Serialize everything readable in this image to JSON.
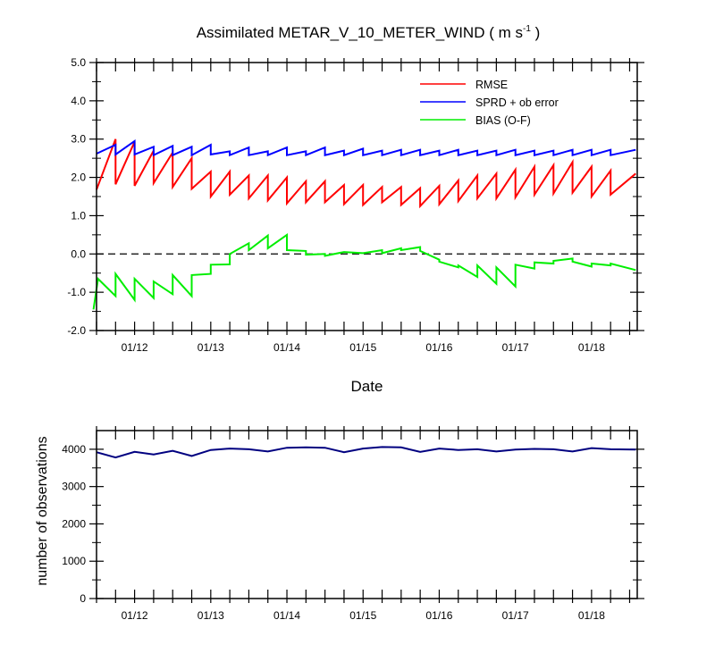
{
  "chart_data": [
    {
      "type": "line",
      "title_main": "Assimilated METAR_V_10_METER_WIND ( m s",
      "title_sup": "-1",
      "title_end": " )",
      "xlabel": "Date",
      "ylabel": "",
      "ylim": [
        -2.0,
        5.0
      ],
      "y_ticks": [
        "5.0",
        "4.0",
        "3.0",
        "2.0",
        "1.0",
        "0.0",
        "-1.0",
        "-2.0"
      ],
      "y_tick_values": [
        5,
        4,
        3,
        2,
        1,
        0,
        -1,
        -2
      ],
      "xlim": [
        11.5,
        18.6
      ],
      "x_ticks": [
        "01/12",
        "01/13",
        "01/14",
        "01/15",
        "01/16",
        "01/17",
        "01/18"
      ],
      "x_tick_values": [
        12,
        13,
        14,
        15,
        16,
        17,
        18
      ],
      "zero_line": 0.0,
      "legend": [
        "RMSE",
        "SPRD + ob error",
        "BIAS (O-F)"
      ],
      "colors": {
        "rmse": "#ff0000",
        "sprd": "#0000ff",
        "bias": "#00ee00"
      },
      "series": [
        {
          "name": "RMSE",
          "x": [
            11.5,
            11.75,
            11.75,
            12.0,
            12.0,
            12.25,
            12.25,
            12.5,
            12.5,
            12.75,
            12.75,
            13.0,
            13.0,
            13.25,
            13.25,
            13.5,
            13.5,
            13.75,
            13.75,
            14.0,
            14.0,
            14.25,
            14.25,
            14.5,
            14.5,
            14.75,
            14.75,
            15.0,
            15.0,
            15.25,
            15.25,
            15.5,
            15.5,
            15.75,
            15.75,
            16.0,
            16.0,
            16.25,
            16.25,
            16.5,
            16.5,
            16.75,
            16.75,
            17.0,
            17.0,
            17.25,
            17.25,
            17.5,
            17.5,
            17.75,
            17.75,
            18.0,
            18.0,
            18.25,
            18.25,
            18.58
          ],
          "values": [
            1.68,
            3.0,
            1.82,
            2.93,
            1.78,
            2.7,
            1.85,
            2.65,
            1.75,
            2.5,
            1.7,
            2.15,
            1.5,
            2.15,
            1.55,
            2.05,
            1.45,
            2.05,
            1.4,
            2.0,
            1.32,
            1.9,
            1.35,
            1.9,
            1.35,
            1.8,
            1.3,
            1.8,
            1.28,
            1.75,
            1.35,
            1.75,
            1.28,
            1.72,
            1.25,
            1.78,
            1.3,
            1.92,
            1.38,
            2.05,
            1.45,
            2.1,
            1.45,
            2.2,
            1.48,
            2.28,
            1.55,
            2.32,
            1.58,
            2.4,
            1.6,
            2.28,
            1.5,
            2.18,
            1.55,
            2.1
          ]
        },
        {
          "name": "SPRD + ob error",
          "x": [
            11.5,
            11.75,
            11.75,
            12.0,
            12.0,
            12.25,
            12.25,
            12.5,
            12.5,
            12.75,
            12.75,
            13.0,
            13.0,
            13.25,
            13.25,
            13.5,
            13.5,
            13.75,
            13.75,
            14.0,
            14.0,
            14.25,
            14.25,
            14.5,
            14.5,
            14.75,
            14.75,
            15.0,
            15.0,
            15.25,
            15.25,
            15.5,
            15.5,
            15.75,
            15.75,
            16.0,
            16.0,
            16.25,
            16.25,
            16.5,
            16.5,
            16.75,
            16.75,
            17.0,
            17.0,
            17.25,
            17.25,
            17.5,
            17.5,
            17.75,
            17.75,
            18.0,
            18.0,
            18.25,
            18.25,
            18.58
          ],
          "values": [
            2.62,
            2.85,
            2.6,
            2.95,
            2.6,
            2.8,
            2.58,
            2.82,
            2.58,
            2.8,
            2.58,
            2.85,
            2.6,
            2.68,
            2.58,
            2.78,
            2.58,
            2.68,
            2.58,
            2.78,
            2.58,
            2.68,
            2.58,
            2.78,
            2.58,
            2.7,
            2.58,
            2.75,
            2.58,
            2.7,
            2.58,
            2.72,
            2.58,
            2.72,
            2.58,
            2.7,
            2.58,
            2.72,
            2.58,
            2.7,
            2.58,
            2.7,
            2.58,
            2.72,
            2.58,
            2.7,
            2.58,
            2.7,
            2.58,
            2.72,
            2.58,
            2.72,
            2.58,
            2.72,
            2.58,
            2.72
          ]
        },
        {
          "name": "BIAS (O-F)",
          "x": [
            11.46,
            11.52,
            11.75,
            11.75,
            12.0,
            12.0,
            12.25,
            12.25,
            12.5,
            12.5,
            12.75,
            12.75,
            13.0,
            13.0,
            13.25,
            13.25,
            13.5,
            13.5,
            13.75,
            13.75,
            14.0,
            14.0,
            14.25,
            14.25,
            14.5,
            14.5,
            14.75,
            14.75,
            15.0,
            15.0,
            15.25,
            15.25,
            15.5,
            15.5,
            15.75,
            15.75,
            16.0,
            16.0,
            16.25,
            16.25,
            16.5,
            16.5,
            16.75,
            16.75,
            17.0,
            17.0,
            17.25,
            17.25,
            17.5,
            17.5,
            17.75,
            17.75,
            18.0,
            18.0,
            18.25,
            18.25,
            18.58
          ],
          "values": [
            -1.45,
            -0.65,
            -1.1,
            -0.52,
            -1.2,
            -0.65,
            -1.15,
            -0.72,
            -1.05,
            -0.55,
            -1.1,
            -0.55,
            -0.52,
            -0.28,
            -0.27,
            0.0,
            0.28,
            0.1,
            0.48,
            0.15,
            0.5,
            0.1,
            0.08,
            -0.02,
            0.0,
            -0.05,
            0.05,
            0.05,
            0.02,
            0.02,
            0.1,
            0.02,
            0.15,
            0.1,
            0.18,
            0.08,
            -0.15,
            -0.2,
            -0.35,
            -0.3,
            -0.6,
            -0.3,
            -0.78,
            -0.35,
            -0.85,
            -0.28,
            -0.38,
            -0.22,
            -0.25,
            -0.18,
            -0.12,
            -0.2,
            -0.33,
            -0.25,
            -0.3,
            -0.25,
            -0.42
          ]
        }
      ]
    },
    {
      "type": "line",
      "title": "",
      "xlabel": "",
      "ylabel": "number of observations",
      "ylim": [
        0,
        4500
      ],
      "y_ticks": [
        "4000",
        "3000",
        "2000",
        "1000",
        "0"
      ],
      "y_tick_values": [
        4000,
        3000,
        2000,
        1000,
        0
      ],
      "xlim": [
        11.5,
        18.6
      ],
      "x_ticks": [
        "01/12",
        "01/13",
        "01/14",
        "01/15",
        "01/16",
        "01/17",
        "01/18"
      ],
      "x_tick_values": [
        12,
        13,
        14,
        15,
        16,
        17,
        18
      ],
      "series": [
        {
          "name": "observations",
          "color": "#000080",
          "x": [
            11.5,
            11.75,
            12.0,
            12.25,
            12.5,
            12.75,
            13.0,
            13.25,
            13.5,
            13.75,
            14.0,
            14.25,
            14.5,
            14.75,
            15.0,
            15.25,
            15.5,
            15.75,
            16.0,
            16.25,
            16.5,
            16.75,
            17.0,
            17.25,
            17.5,
            17.75,
            18.0,
            18.25,
            18.58
          ],
          "values": [
            3920,
            3780,
            3930,
            3860,
            3960,
            3820,
            3980,
            4020,
            4000,
            3940,
            4040,
            4050,
            4040,
            3920,
            4020,
            4060,
            4050,
            3930,
            4020,
            3980,
            4000,
            3940,
            3990,
            4010,
            4000,
            3940,
            4030,
            4000,
            3990
          ]
        }
      ]
    }
  ]
}
